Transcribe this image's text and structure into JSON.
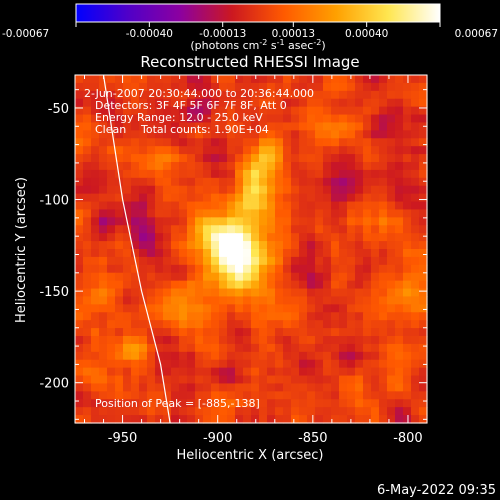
{
  "chart_data": {
    "type": "heatmap",
    "title": "Reconstructed RHESSI Image",
    "xlabel": "Heliocentric X (arcsec)",
    "ylabel": "Heliocentric Y (arcsec)",
    "xlim": [
      -975,
      -790
    ],
    "ylim": [
      -222,
      -32
    ],
    "x_ticks": [
      -950,
      -900,
      -850,
      -800
    ],
    "x_tick_labels": [
      "-950",
      "-900",
      "-850",
      "-800"
    ],
    "y_ticks": [
      -200,
      -150,
      -100,
      -50
    ],
    "y_tick_labels": [
      "-200",
      "-150",
      "-100",
      "-50"
    ],
    "colorbar": {
      "range": [
        -0.00067,
        0.00067
      ],
      "tick_values": [
        -0.00067,
        -0.0004,
        -0.00013,
        0.00013,
        0.0004,
        0.00067
      ],
      "tick_labels": [
        "-0.00067",
        "-0.00040",
        "-0.00013",
        "0.00013",
        "0.00040",
        "0.00067"
      ],
      "units_main": "(photons cm",
      "units_exp1": "-2",
      "units_mid1": " s",
      "units_exp2": "-1",
      "units_mid2": " asec",
      "units_exp3": "-2",
      "units_end": ")",
      "colors": [
        "#0000ff",
        "#5000c8",
        "#8c00a0",
        "#cc1820",
        "#ff5a00",
        "#ffa000",
        "#ffe650",
        "#ffffff"
      ]
    },
    "annotations": {
      "time": " 2-Jun-2007 20:30:44.000 to 20:36:44.000",
      "detectors": "Detectors: 3F 4F 5F 6F 7F 8F, Att 0",
      "energy": "Energy Range: 12.0 - 25.0 keV",
      "clean": "Clean",
      "counts": "Total counts: 1.90E+04",
      "peak": "Position of Peak = [-885,-138]"
    },
    "peak": {
      "x": -885,
      "y": -138
    },
    "limb_curve": [
      [
        -960,
        -32
      ],
      [
        -950,
        -100
      ],
      [
        -940,
        -150
      ],
      [
        -930,
        -190
      ],
      [
        -925,
        -222
      ]
    ],
    "sources": [
      {
        "x": -888,
        "y": -132,
        "sx": 11,
        "sy": 13,
        "amp": 0.00072
      },
      {
        "x": -882,
        "y": -95,
        "sx": 7,
        "sy": 13,
        "amp": 0.0005
      },
      {
        "x": -903,
        "y": -120,
        "sx": 9,
        "sy": 9,
        "amp": 0.0004
      },
      {
        "x": -873,
        "y": -72,
        "sx": 6,
        "sy": 9,
        "amp": 0.00028
      },
      {
        "x": -915,
        "y": -160,
        "sx": 8,
        "sy": 8,
        "amp": 0.00022
      },
      {
        "x": -870,
        "y": -160,
        "sx": 7,
        "sy": 7,
        "amp": 0.0002
      },
      {
        "x": -945,
        "y": -183,
        "sx": 5,
        "sy": 5,
        "amp": 0.00022
      },
      {
        "x": -958,
        "y": -150,
        "sx": 6,
        "sy": 9,
        "amp": 0.00015
      },
      {
        "x": -948,
        "y": -75,
        "sx": 6,
        "sy": 6,
        "amp": 0.00014
      },
      {
        "x": -930,
        "y": -78,
        "sx": 5,
        "sy": 5,
        "amp": 0.00016
      },
      {
        "x": -800,
        "y": -150,
        "sx": 9,
        "sy": 14,
        "amp": 0.00016
      },
      {
        "x": -805,
        "y": -192,
        "sx": 8,
        "sy": 8,
        "amp": 0.00015
      },
      {
        "x": -828,
        "y": -205,
        "sx": 7,
        "sy": 6,
        "amp": 0.00013
      },
      {
        "x": -815,
        "y": -110,
        "sx": 6,
        "sy": 6,
        "amp": 0.00012
      },
      {
        "x": -840,
        "y": -55,
        "sx": 7,
        "sy": 5,
        "amp": 0.0001
      },
      {
        "x": -965,
        "y": -195,
        "sx": 5,
        "sy": 5,
        "amp": 0.00012
      },
      {
        "x": -960,
        "y": -110,
        "sx": 5,
        "sy": 6,
        "amp": -0.0002
      },
      {
        "x": -940,
        "y": -115,
        "sx": 5,
        "sy": 9,
        "amp": -0.0002
      },
      {
        "x": -830,
        "y": -90,
        "sx": 7,
        "sy": 7,
        "amp": -0.00016
      },
      {
        "x": -850,
        "y": -130,
        "sx": 5,
        "sy": 7,
        "amp": -0.00014
      },
      {
        "x": -895,
        "y": -195,
        "sx": 8,
        "sy": 5,
        "amp": -0.00015
      },
      {
        "x": -912,
        "y": -52,
        "sx": 7,
        "sy": 5,
        "amp": -0.00015
      },
      {
        "x": -815,
        "y": -60,
        "sx": 7,
        "sy": 6,
        "amp": -0.00013
      }
    ]
  },
  "footer": {
    "timestamp": "6-May-2022 09:35"
  }
}
